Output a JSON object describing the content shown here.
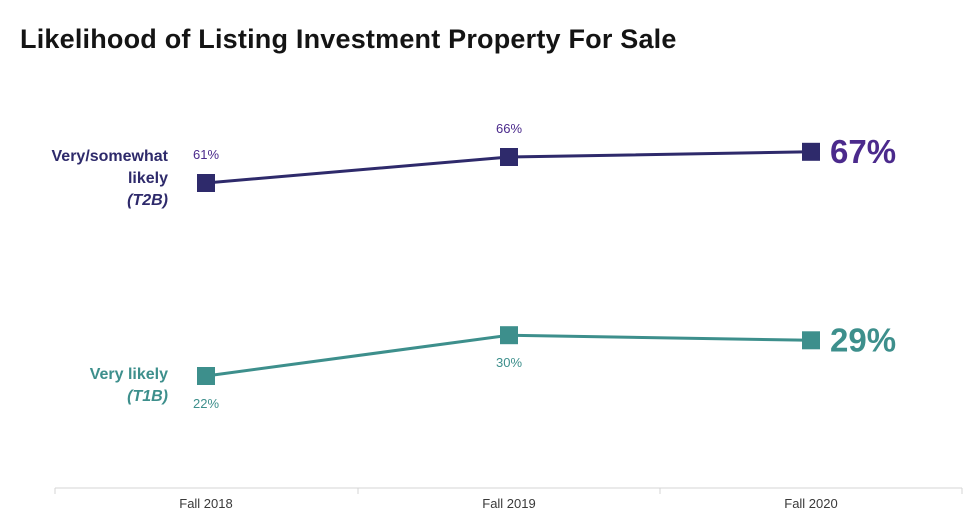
{
  "chart_data": {
    "type": "line",
    "title": "Likelihood of Listing Investment Property For Sale",
    "categories": [
      "Fall 2018",
      "Fall 2019",
      "Fall 2020"
    ],
    "series": [
      {
        "name": "Very/somewhat likely",
        "name_lines": [
          "Very/somewhat",
          "likely"
        ],
        "abbrev": "(T2B)",
        "color": "#2e2a6b",
        "label_color": "#4b2a8c",
        "values": [
          61,
          66,
          67
        ],
        "value_labels": [
          "61%",
          "66%",
          "67%"
        ]
      },
      {
        "name": "Very likely",
        "name_lines": [
          "Very likely"
        ],
        "abbrev": "(T1B)",
        "color": "#3d8f8c",
        "label_color": "#3d8f8c",
        "values": [
          22,
          30,
          29
        ],
        "value_labels": [
          "22%",
          "30%",
          "29%"
        ]
      }
    ],
    "xlabel": "",
    "ylabel": "",
    "grid": false,
    "legend": "left inline labels"
  }
}
